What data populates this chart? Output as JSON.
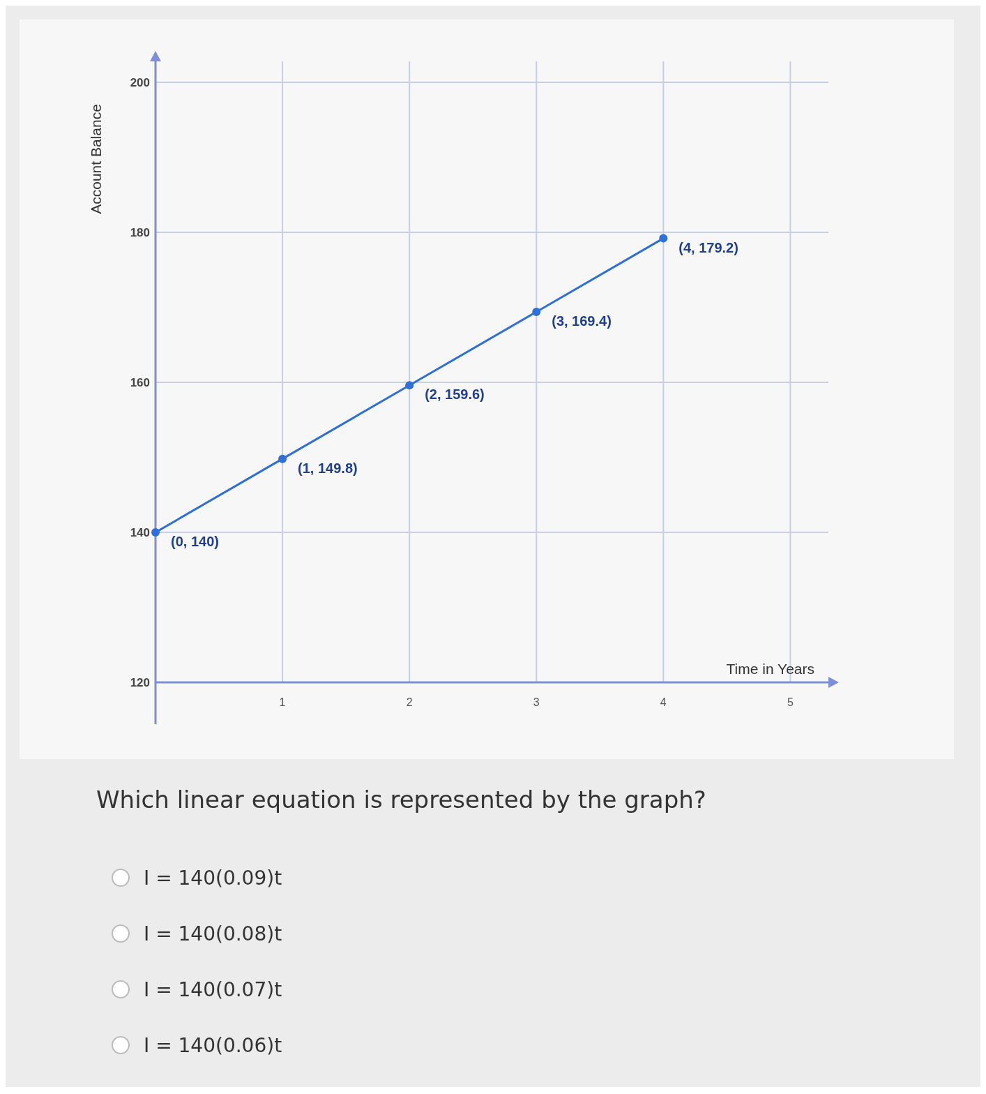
{
  "chart_data": {
    "type": "line",
    "xlabel": "Time in Years",
    "ylabel": "Account Balance",
    "x": [
      0,
      1,
      2,
      3,
      4
    ],
    "series": [
      {
        "color": "#2f6fd6",
        "values": [
          140,
          149.8,
          159.6,
          169.4,
          179.2
        ],
        "value_labels": [
          "(0, 140)",
          "(1, 149.8)",
          "(2, 159.6)",
          "(3, 169.4)",
          "(4, 179.2)"
        ]
      }
    ],
    "xlim": [
      0,
      5.3
    ],
    "xticks": [
      1,
      2,
      3,
      4,
      5
    ],
    "ylim": [
      120,
      200
    ],
    "yticks": [
      120,
      140,
      160,
      180,
      200
    ],
    "grid": true,
    "marker": "circle",
    "line_style": "solid",
    "annotations": [
      "Which linear equation is represented by the graph?",
      "I = 140(0.09)t",
      "I = 140(0.08)t",
      "I = 140(0.07)t",
      "I = 140(0.06)t"
    ]
  }
}
